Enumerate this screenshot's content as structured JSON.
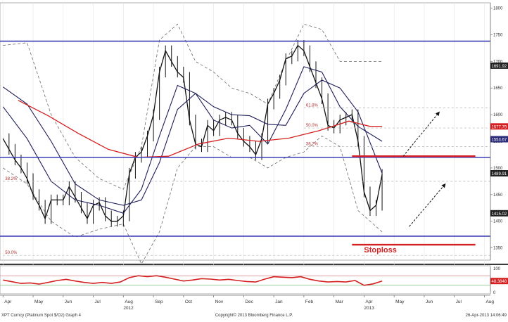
{
  "chart_data": {
    "type": "line",
    "footer": {
      "left": "XPT Curncy (Platinum Spot $/Oz) Graph 4",
      "center": "Copyright© 2013 Bloomberg Finance L.P.",
      "right": "26-Apr-2013 14:06:49"
    },
    "x_axis": {
      "months": [
        {
          "label": "Apr",
          "t": 0
        },
        {
          "label": "May",
          "t": 1
        },
        {
          "label": "Jun",
          "t": 2
        },
        {
          "label": "Jul",
          "t": 3
        },
        {
          "label": "Aug",
          "t": 4
        },
        {
          "label": "Sep",
          "t": 5
        },
        {
          "label": "Oct",
          "t": 6
        },
        {
          "label": "Nov",
          "t": 7
        },
        {
          "label": "Dec",
          "t": 8
        },
        {
          "label": "Jan",
          "t": 9
        },
        {
          "label": "Feb",
          "t": 10
        },
        {
          "label": "Mar",
          "t": 11
        },
        {
          "label": "Apr",
          "t": 12
        },
        {
          "label": "May",
          "t": 13
        },
        {
          "label": "Jun",
          "t": 14
        },
        {
          "label": "Jul",
          "t": 15
        },
        {
          "label": "Aug",
          "t": 16
        }
      ],
      "year_labels": [
        {
          "label": "2012",
          "t": 4
        },
        {
          "label": "2013",
          "t": 12
        }
      ],
      "range": [
        -0.1,
        16.2
      ]
    },
    "price_panel": {
      "ylim": [
        1327,
        1810
      ],
      "ticks": [
        1350,
        1400,
        1450,
        1500,
        1550,
        1600,
        1650,
        1700,
        1750,
        1800
      ],
      "price": [
        [
          0.0,
          1555
        ],
        [
          0.2,
          1535
        ],
        [
          0.4,
          1515
        ],
        [
          0.6,
          1500
        ],
        [
          0.8,
          1480
        ],
        [
          1.0,
          1450
        ],
        [
          1.2,
          1430
        ],
        [
          1.4,
          1405
        ],
        [
          1.6,
          1440
        ],
        [
          1.8,
          1440
        ],
        [
          2.0,
          1440
        ],
        [
          2.2,
          1465
        ],
        [
          2.4,
          1445
        ],
        [
          2.6,
          1425
        ],
        [
          2.8,
          1405
        ],
        [
          3.0,
          1430
        ],
        [
          3.2,
          1435
        ],
        [
          3.4,
          1410
        ],
        [
          3.6,
          1400
        ],
        [
          3.8,
          1400
        ],
        [
          4.0,
          1410
        ],
        [
          4.2,
          1490
        ],
        [
          4.4,
          1520
        ],
        [
          4.6,
          1530
        ],
        [
          4.8,
          1560
        ],
        [
          5.0,
          1600
        ],
        [
          5.2,
          1680
        ],
        [
          5.4,
          1720
        ],
        [
          5.6,
          1700
        ],
        [
          5.8,
          1680
        ],
        [
          6.0,
          1670
        ],
        [
          6.2,
          1590
        ],
        [
          6.4,
          1545
        ],
        [
          6.6,
          1540
        ],
        [
          6.8,
          1580
        ],
        [
          7.0,
          1570
        ],
        [
          7.2,
          1590
        ],
        [
          7.4,
          1595
        ],
        [
          7.6,
          1590
        ],
        [
          7.8,
          1565
        ],
        [
          8.0,
          1550
        ],
        [
          8.2,
          1540
        ],
        [
          8.4,
          1525
        ],
        [
          8.6,
          1555
        ],
        [
          8.8,
          1620
        ],
        [
          9.0,
          1640
        ],
        [
          9.2,
          1665
        ],
        [
          9.4,
          1705
        ],
        [
          9.6,
          1710
        ],
        [
          9.8,
          1730
        ],
        [
          10.0,
          1720
        ],
        [
          10.2,
          1690
        ],
        [
          10.4,
          1660
        ],
        [
          10.6,
          1630
        ],
        [
          10.8,
          1580
        ],
        [
          11.0,
          1575
        ],
        [
          11.2,
          1590
        ],
        [
          11.4,
          1595
        ],
        [
          11.6,
          1600
        ],
        [
          11.8,
          1550
        ],
        [
          12.0,
          1455
        ],
        [
          12.2,
          1420
        ],
        [
          12.4,
          1430
        ],
        [
          12.6,
          1488
        ]
      ],
      "ma_red": [
        [
          0.5,
          1627
        ],
        [
          1.5,
          1598
        ],
        [
          2.5,
          1565
        ],
        [
          3.5,
          1535
        ],
        [
          4.5,
          1520
        ],
        [
          5.5,
          1522
        ],
        [
          6.5,
          1545
        ],
        [
          7.5,
          1556
        ],
        [
          8.5,
          1550
        ],
        [
          9.5,
          1556
        ],
        [
          10.5,
          1570
        ],
        [
          11.5,
          1588
        ],
        [
          12.2,
          1578
        ],
        [
          12.6,
          1578
        ]
      ],
      "ma_blue_fast": [
        [
          0.0,
          1615
        ],
        [
          0.8,
          1555
        ],
        [
          1.6,
          1475
        ],
        [
          2.4,
          1440
        ],
        [
          3.2,
          1430
        ],
        [
          4.0,
          1415
        ],
        [
          4.6,
          1460
        ],
        [
          5.2,
          1560
        ],
        [
          5.8,
          1655
        ],
        [
          6.4,
          1640
        ],
        [
          7.0,
          1590
        ],
        [
          7.6,
          1575
        ],
        [
          8.2,
          1580
        ],
        [
          8.8,
          1545
        ],
        [
          9.4,
          1610
        ],
        [
          10.0,
          1690
        ],
        [
          10.6,
          1680
        ],
        [
          11.2,
          1615
        ],
        [
          11.8,
          1578
        ],
        [
          12.6,
          1550
        ]
      ],
      "ma_blue_slow": [
        [
          0.0,
          1652
        ],
        [
          0.8,
          1620
        ],
        [
          1.6,
          1550
        ],
        [
          2.4,
          1470
        ],
        [
          3.2,
          1440
        ],
        [
          4.0,
          1430
        ],
        [
          4.6,
          1440
        ],
        [
          5.2,
          1510
        ],
        [
          5.8,
          1610
        ],
        [
          6.4,
          1640
        ],
        [
          7.0,
          1615
        ],
        [
          7.6,
          1600
        ],
        [
          8.2,
          1598
        ],
        [
          8.8,
          1582
        ],
        [
          9.4,
          1580
        ],
        [
          10.0,
          1640
        ],
        [
          10.6,
          1665
        ],
        [
          11.2,
          1650
        ],
        [
          11.8,
          1605
        ],
        [
          12.6,
          1490
        ]
      ],
      "band_upper": [
        [
          0.0,
          1730
        ],
        [
          0.8,
          1735
        ],
        [
          1.6,
          1600
        ],
        [
          2.4,
          1520
        ],
        [
          3.2,
          1480
        ],
        [
          4.0,
          1460
        ],
        [
          4.6,
          1540
        ],
        [
          5.2,
          1740
        ],
        [
          5.8,
          1770
        ],
        [
          6.4,
          1700
        ],
        [
          7.0,
          1680
        ],
        [
          7.6,
          1650
        ],
        [
          8.2,
          1640
        ],
        [
          8.8,
          1620
        ],
        [
          9.4,
          1700
        ],
        [
          10.0,
          1770
        ],
        [
          10.6,
          1760
        ],
        [
          11.2,
          1700
        ],
        [
          11.8,
          1700
        ],
        [
          12.6,
          1700
        ]
      ],
      "band_lower": [
        [
          0.0,
          1500
        ],
        [
          0.8,
          1470
        ],
        [
          1.6,
          1400
        ],
        [
          2.4,
          1370
        ],
        [
          3.2,
          1385
        ],
        [
          4.0,
          1395
        ],
        [
          4.6,
          1320
        ],
        [
          5.2,
          1380
        ],
        [
          5.8,
          1500
        ],
        [
          6.4,
          1540
        ],
        [
          7.0,
          1540
        ],
        [
          7.6,
          1520
        ],
        [
          8.2,
          1520
        ],
        [
          8.8,
          1500
        ],
        [
          9.4,
          1520
        ],
        [
          10.0,
          1530
        ],
        [
          10.6,
          1560
        ],
        [
          11.2,
          1540
        ],
        [
          11.8,
          1420
        ],
        [
          12.6,
          1380
        ]
      ],
      "horizontal_lines": [
        {
          "y": 1738,
          "color": "#3c3cb4",
          "x0": -0.1,
          "x1": 16.2
        },
        {
          "y": 1520,
          "color": "#3c3cb4",
          "x0": -0.1,
          "x1": 16.2
        },
        {
          "y": 1372,
          "color": "#3c3cb4",
          "x0": -0.1,
          "x1": 16.2
        },
        {
          "y": 1522,
          "color": "#d42020",
          "x0": 11.6,
          "x1": 15.7
        },
        {
          "y": 1356,
          "color": "#d42020",
          "x0": 11.6,
          "x1": 15.7
        }
      ],
      "fib_levels": [
        {
          "label": "61.8%",
          "y": 1613,
          "t": 10.0
        },
        {
          "label": "50.0%",
          "y": 1575,
          "t": 10.0
        },
        {
          "label": "38.2%",
          "y": 1540,
          "t": 10.0
        },
        {
          "label": "38.2%",
          "y": 1475,
          "t": 0.0
        },
        {
          "label": "50.0%",
          "y": 1336,
          "t": 0.0
        }
      ],
      "right_labels": [
        {
          "label": "1691.92",
          "y": 1692,
          "color": "#222222"
        },
        {
          "label": "1577.79",
          "y": 1578,
          "color": "#d42020"
        },
        {
          "label": "1553.67",
          "y": 1554,
          "color": "#2a2a7a"
        },
        {
          "label": "1489.91",
          "y": 1490,
          "color": "#222222"
        },
        {
          "label": "1415.02",
          "y": 1415,
          "color": "#222222"
        }
      ],
      "stoploss_label": "Stoploss",
      "arrows": [
        [
          [
            13.3,
            1522
          ],
          [
            14.5,
            1605
          ]
        ],
        [
          [
            13.5,
            1390
          ],
          [
            14.7,
            1470
          ]
        ]
      ]
    },
    "indicator_panel": {
      "ylim": [
        0,
        106
      ],
      "ticks": [
        0,
        50,
        100
      ],
      "overbought": 70,
      "oversold": 30,
      "value_label": "48.3848",
      "values": [
        [
          0.0,
          52
        ],
        [
          0.3,
          45
        ],
        [
          0.6,
          38
        ],
        [
          0.9,
          40
        ],
        [
          1.2,
          35
        ],
        [
          1.5,
          42
        ],
        [
          1.8,
          50
        ],
        [
          2.1,
          55
        ],
        [
          2.4,
          48
        ],
        [
          2.7,
          42
        ],
        [
          3.0,
          38
        ],
        [
          3.3,
          42
        ],
        [
          3.6,
          38
        ],
        [
          3.9,
          44
        ],
        [
          4.2,
          62
        ],
        [
          4.5,
          70
        ],
        [
          4.8,
          66
        ],
        [
          5.1,
          70
        ],
        [
          5.4,
          64
        ],
        [
          5.7,
          56
        ],
        [
          6.0,
          48
        ],
        [
          6.3,
          52
        ],
        [
          6.6,
          58
        ],
        [
          6.9,
          56
        ],
        [
          7.2,
          52
        ],
        [
          7.5,
          55
        ],
        [
          7.8,
          50
        ],
        [
          8.1,
          46
        ],
        [
          8.4,
          44
        ],
        [
          8.7,
          56
        ],
        [
          9.0,
          66
        ],
        [
          9.3,
          64
        ],
        [
          9.6,
          62
        ],
        [
          9.9,
          66
        ],
        [
          10.2,
          55
        ],
        [
          10.5,
          48
        ],
        [
          10.8,
          44
        ],
        [
          11.1,
          46
        ],
        [
          11.4,
          44
        ],
        [
          11.7,
          50
        ],
        [
          12.0,
          30
        ],
        [
          12.3,
          36
        ],
        [
          12.6,
          48
        ]
      ]
    }
  }
}
